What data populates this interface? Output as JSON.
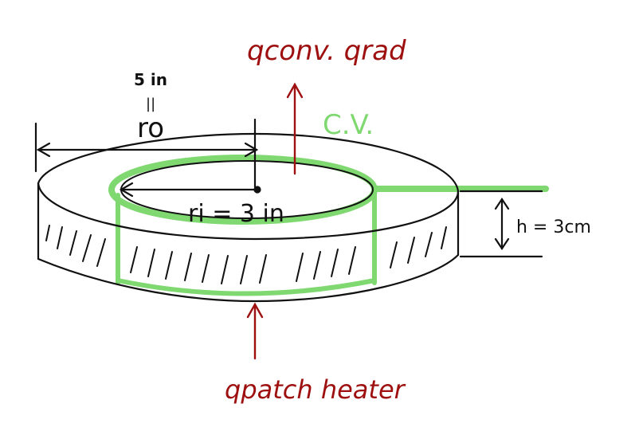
{
  "labels": {
    "q_conv_rad": "qconv. qrad",
    "cv": "C.V.",
    "outer_radius_value": "5 in",
    "equals_mark": "||",
    "outer_radius_symbol": "ro",
    "inner_radius": "ri = 3 in",
    "height": "h = 3cm",
    "q_patch_heater": "qpatch heater"
  },
  "colors": {
    "ink": "#111111",
    "heat_flow": "#9e1010",
    "control_volume": "#7fd870"
  }
}
